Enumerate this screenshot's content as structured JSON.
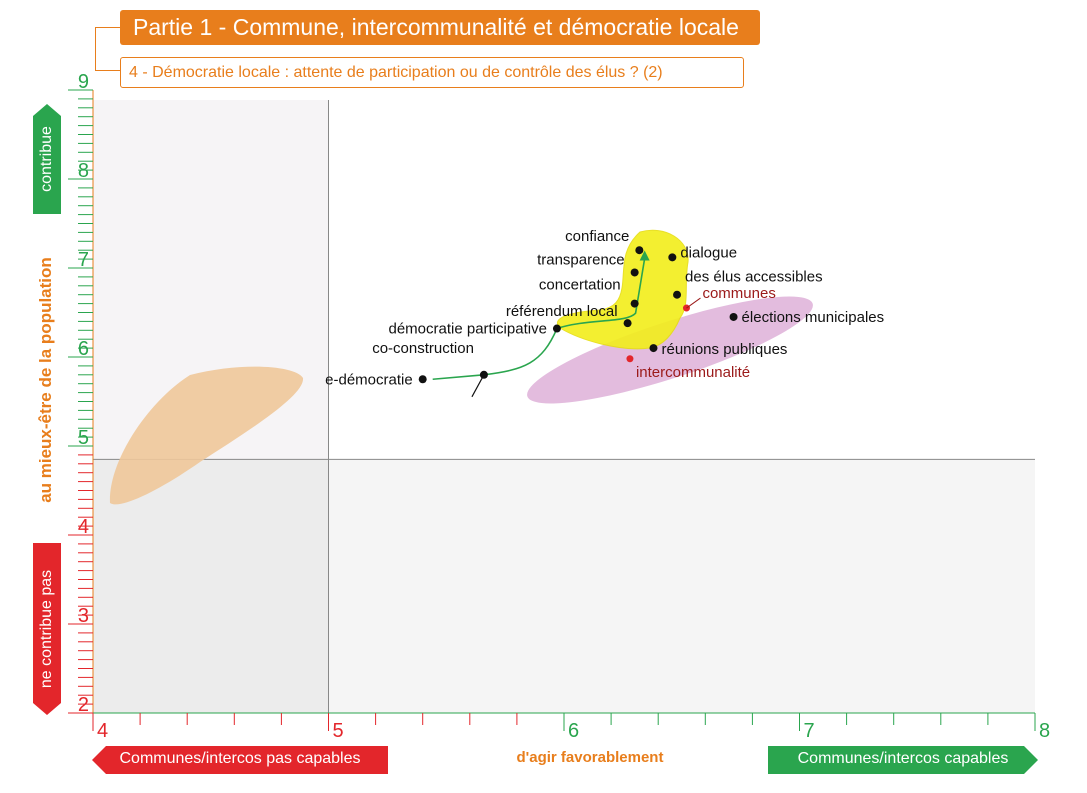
{
  "header": {
    "part_title": "Partie 1 - Commune, intercommunalité et démocratie locale",
    "section_title": "4 - Démocratie locale : attente de participation ou de contrôle des élus ? (2)"
  },
  "colors": {
    "orange": "#e87e1c",
    "green": "#2aa54e",
    "red": "#e3262b",
    "yellow_zone": "#f2ee1a",
    "pink_zone": "#d9a6d3",
    "tan_zone": "#f0c89a",
    "dark_red_text": "#9b1a1a"
  },
  "chart_data": {
    "type": "scatter",
    "xlabel": "d'agir favorablement",
    "ylabel": "au mieux-être de la population",
    "xlim": [
      4,
      8
    ],
    "ylim": [
      2,
      9
    ],
    "x_ticks": [
      "4",
      "5",
      "6",
      "7",
      "8"
    ],
    "y_ticks": [
      "2",
      "3",
      "4",
      "5",
      "6",
      "7",
      "8",
      "9"
    ],
    "reference_lines": {
      "x": 5,
      "y": 4.85
    },
    "x_scale_labels": {
      "low": "Communes/intercos pas capables",
      "high": "Communes/intercos capables"
    },
    "y_scale_labels": {
      "high": "contribue",
      "low": "ne contribue pas"
    },
    "points": [
      {
        "label": "e-démocratie",
        "x": 5.4,
        "y": 5.75
      },
      {
        "label": "co-construction",
        "x": 5.66,
        "y": 5.8
      },
      {
        "label": "démocratie participative",
        "x": 5.97,
        "y": 6.32
      },
      {
        "label": "référendum local",
        "x": 6.27,
        "y": 6.38
      },
      {
        "label": "concertation",
        "x": 6.3,
        "y": 6.6
      },
      {
        "label": "transparence",
        "x": 6.3,
        "y": 6.95
      },
      {
        "label": "confiance",
        "x": 6.32,
        "y": 7.2
      },
      {
        "label": "dialogue",
        "x": 6.46,
        "y": 7.12
      },
      {
        "label": "des élus accessibles",
        "x": 6.48,
        "y": 6.7
      },
      {
        "label": "réunions publiques",
        "x": 6.38,
        "y": 6.1
      },
      {
        "label": "élections municipales",
        "x": 6.72,
        "y": 6.45
      }
    ],
    "group_points": [
      {
        "label": "communes",
        "x": 6.52,
        "y": 6.55
      },
      {
        "label": "intercommunalité",
        "x": 6.28,
        "y": 5.98
      }
    ]
  }
}
